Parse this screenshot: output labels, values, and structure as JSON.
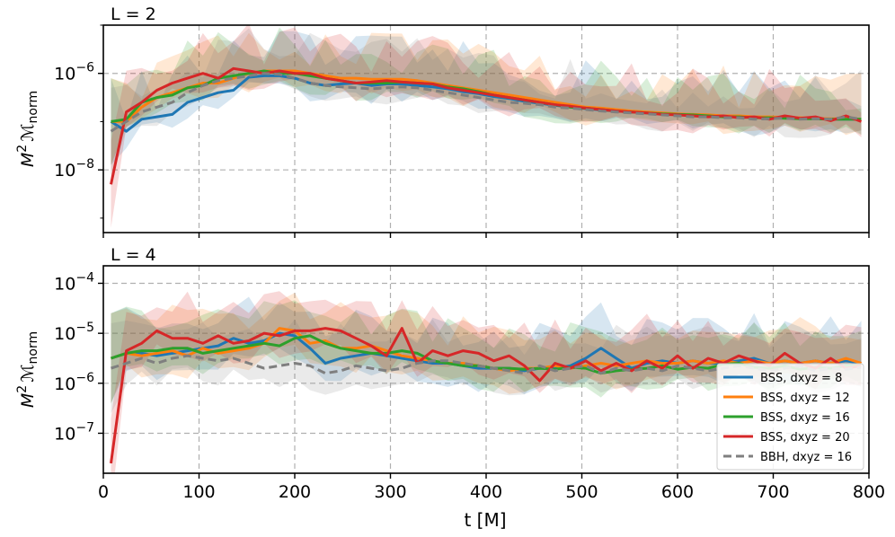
{
  "figure": {
    "xlabel": "t [M]"
  },
  "chart_data": [
    {
      "type": "line",
      "title": "L = 2",
      "ylabel_main": "M",
      "ylabel_sup": "2",
      "ylabel_script": "ℳ",
      "ylabel_sub": "norm",
      "yscale": "log",
      "xlim": [
        0,
        800
      ],
      "ylim_log10": [
        -9.3,
        -5
      ],
      "xticks": [
        0,
        100,
        200,
        300,
        400,
        500,
        600,
        700,
        800
      ],
      "yticks": [
        {
          "exp": -8,
          "base": "10",
          "sup": "−8"
        },
        {
          "exp": -6,
          "base": "10",
          "sup": "−6"
        }
      ],
      "grid": true,
      "x": [
        8,
        24,
        40,
        56,
        72,
        88,
        104,
        120,
        136,
        152,
        168,
        184,
        200,
        216,
        232,
        248,
        264,
        280,
        296,
        312,
        328,
        344,
        360,
        376,
        392,
        408,
        424,
        440,
        456,
        472,
        488,
        504,
        520,
        536,
        552,
        568,
        584,
        600,
        616,
        632,
        648,
        664,
        680,
        696,
        712,
        728,
        744,
        760,
        776,
        792
      ],
      "series": [
        {
          "name": "BSS, dxyz = 8",
          "color": "#1f77b4",
          "dashed": false,
          "log10": [
            -7.0,
            -7.2,
            -6.95,
            -6.9,
            -6.85,
            -6.6,
            -6.5,
            -6.4,
            -6.35,
            -6.08,
            -6.05,
            -6.05,
            -6.1,
            -6.2,
            -6.25,
            -6.22,
            -6.2,
            -6.25,
            -6.22,
            -6.22,
            -6.25,
            -6.28,
            -6.32,
            -6.38,
            -6.42,
            -6.48,
            -6.52,
            -6.58,
            -6.62,
            -6.66,
            -6.7,
            -6.73,
            -6.76,
            -6.78,
            -6.8,
            -6.82,
            -6.84,
            -6.85,
            -6.87,
            -6.88,
            -6.88,
            -6.9,
            -6.9,
            -6.92,
            -6.92,
            -6.93,
            -6.94,
            -6.95,
            -6.95,
            -6.95
          ]
        },
        {
          "name": "BSS, dxyz = 12",
          "color": "#ff7f0e",
          "dashed": false,
          "log10": [
            -7.0,
            -7.0,
            -6.7,
            -6.5,
            -6.4,
            -6.3,
            -6.2,
            -6.2,
            -6.1,
            -6.0,
            -5.95,
            -5.95,
            -5.95,
            -6.0,
            -6.05,
            -6.1,
            -6.1,
            -6.12,
            -6.12,
            -6.12,
            -6.15,
            -6.2,
            -6.25,
            -6.3,
            -6.35,
            -6.4,
            -6.45,
            -6.5,
            -6.55,
            -6.6,
            -6.65,
            -6.7,
            -6.72,
            -6.75,
            -6.78,
            -6.8,
            -6.82,
            -6.84,
            -6.85,
            -6.86,
            -6.88,
            -6.88,
            -6.9,
            -6.9,
            -6.91,
            -6.92,
            -6.93,
            -6.94,
            -6.94,
            -6.95
          ]
        },
        {
          "name": "BSS, dxyz = 16",
          "color": "#2ca02c",
          "dashed": false,
          "log10": [
            -7.0,
            -6.95,
            -6.6,
            -6.5,
            -6.45,
            -6.3,
            -6.25,
            -6.1,
            -6.05,
            -6.0,
            -5.95,
            -6.0,
            -6.0,
            -6.05,
            -6.1,
            -6.15,
            -6.2,
            -6.2,
            -6.2,
            -6.18,
            -6.2,
            -6.22,
            -6.28,
            -6.32,
            -6.38,
            -6.45,
            -6.5,
            -6.55,
            -6.6,
            -6.65,
            -6.7,
            -6.72,
            -6.75,
            -6.78,
            -6.8,
            -6.82,
            -6.84,
            -6.85,
            -6.86,
            -6.88,
            -6.9,
            -6.9,
            -6.92,
            -6.92,
            -6.93,
            -6.94,
            -6.94,
            -6.95,
            -6.95,
            -6.95
          ]
        },
        {
          "name": "BSS, dxyz = 20",
          "color": "#d62728",
          "dashed": false,
          "log10": [
            -8.3,
            -6.8,
            -6.6,
            -6.35,
            -6.2,
            -6.1,
            -6.0,
            -6.1,
            -5.9,
            -5.95,
            -6.0,
            -5.95,
            -6.0,
            -6.0,
            -6.1,
            -6.15,
            -6.2,
            -6.18,
            -6.15,
            -6.18,
            -6.2,
            -6.22,
            -6.3,
            -6.35,
            -6.4,
            -6.45,
            -6.5,
            -6.55,
            -6.6,
            -6.65,
            -6.68,
            -6.72,
            -6.75,
            -6.78,
            -6.8,
            -6.82,
            -6.85,
            -6.86,
            -6.88,
            -6.9,
            -6.88,
            -6.92,
            -6.9,
            -6.95,
            -6.88,
            -6.93,
            -6.9,
            -6.98,
            -6.88,
            -7.0
          ]
        },
        {
          "name": "BBH, dxyz = 16",
          "color": "#7f7f7f",
          "dashed": true,
          "log10": [
            -7.2,
            -7.0,
            -6.8,
            -6.7,
            -6.6,
            -6.4,
            -6.25,
            -6.15,
            -6.1,
            -6.05,
            -6.0,
            -6.02,
            -6.1,
            -6.2,
            -6.25,
            -6.28,
            -6.3,
            -6.32,
            -6.3,
            -6.28,
            -6.3,
            -6.35,
            -6.4,
            -6.45,
            -6.5,
            -6.55,
            -6.6,
            -6.62,
            -6.65,
            -6.7,
            -6.72,
            -6.75,
            -6.78,
            -6.8,
            -6.82,
            -6.84,
            -6.86,
            -6.88,
            -6.9,
            -6.9,
            -6.92,
            -6.92,
            -6.95,
            -6.94,
            -6.93,
            -6.95,
            -6.94,
            -6.95,
            -6.9,
            -6.95
          ]
        }
      ]
    },
    {
      "type": "line",
      "title": "L = 4",
      "ylabel_main": "M",
      "ylabel_sup": "2",
      "ylabel_script": "ℳ",
      "ylabel_sub": "norm",
      "yscale": "log",
      "xlim": [
        0,
        800
      ],
      "ylim_log10": [
        -7.8,
        -3.65
      ],
      "xticks": [
        0,
        100,
        200,
        300,
        400,
        500,
        600,
        700,
        800
      ],
      "yticks": [
        {
          "exp": -7,
          "base": "10",
          "sup": "−7"
        },
        {
          "exp": -6,
          "base": "10",
          "sup": "−6"
        },
        {
          "exp": -5,
          "base": "10",
          "sup": "−5"
        },
        {
          "exp": -4,
          "base": "10",
          "sup": "−4"
        }
      ],
      "grid": true,
      "legend_position": "bottom-right",
      "x": [
        8,
        24,
        40,
        56,
        72,
        88,
        104,
        120,
        136,
        152,
        168,
        184,
        200,
        216,
        232,
        248,
        264,
        280,
        296,
        312,
        328,
        344,
        360,
        376,
        392,
        408,
        424,
        440,
        456,
        472,
        488,
        504,
        520,
        536,
        552,
        568,
        584,
        600,
        616,
        632,
        648,
        664,
        680,
        696,
        712,
        728,
        744,
        760,
        776,
        792
      ],
      "series": [
        {
          "name": "BSS, dxyz = 8",
          "color": "#1f77b4",
          "dashed": false,
          "log10": [
            -5.5,
            -5.4,
            -5.4,
            -5.45,
            -5.4,
            -5.35,
            -5.3,
            -5.25,
            -5.1,
            -5.2,
            -5.15,
            -5.0,
            -5.05,
            -5.3,
            -5.6,
            -5.5,
            -5.45,
            -5.4,
            -5.45,
            -5.5,
            -5.55,
            -5.6,
            -5.6,
            -5.65,
            -5.7,
            -5.7,
            -5.7,
            -5.75,
            -5.7,
            -5.7,
            -5.65,
            -5.5,
            -5.3,
            -5.5,
            -5.7,
            -5.6,
            -5.55,
            -5.6,
            -5.55,
            -5.6,
            -5.6,
            -5.55,
            -5.5,
            -5.6,
            -5.55,
            -5.6,
            -5.55,
            -5.6,
            -5.55,
            -5.6
          ]
        },
        {
          "name": "BSS, dxyz = 12",
          "color": "#ff7f0e",
          "dashed": false,
          "log10": [
            -5.5,
            -5.4,
            -5.45,
            -5.4,
            -5.35,
            -5.45,
            -5.3,
            -5.4,
            -5.35,
            -5.3,
            -5.2,
            -4.9,
            -4.95,
            -5.2,
            -5.15,
            -5.3,
            -5.3,
            -5.25,
            -5.35,
            -5.45,
            -5.5,
            -5.55,
            -5.6,
            -5.6,
            -5.65,
            -5.7,
            -5.75,
            -5.7,
            -5.7,
            -5.65,
            -5.7,
            -5.65,
            -5.6,
            -5.65,
            -5.6,
            -5.55,
            -5.6,
            -5.6,
            -5.55,
            -5.6,
            -5.55,
            -5.6,
            -5.55,
            -5.6,
            -5.55,
            -5.6,
            -5.55,
            -5.6,
            -5.5,
            -5.6
          ]
        },
        {
          "name": "BSS, dxyz = 16",
          "color": "#2ca02c",
          "dashed": false,
          "log10": [
            -5.5,
            -5.4,
            -5.35,
            -5.35,
            -5.3,
            -5.3,
            -5.4,
            -5.35,
            -5.3,
            -5.25,
            -5.2,
            -5.25,
            -5.1,
            -5.05,
            -5.2,
            -5.3,
            -5.35,
            -5.4,
            -5.4,
            -5.35,
            -5.4,
            -5.55,
            -5.6,
            -5.65,
            -5.65,
            -5.7,
            -5.7,
            -5.72,
            -5.7,
            -5.72,
            -5.68,
            -5.7,
            -5.8,
            -5.75,
            -5.72,
            -5.7,
            -5.65,
            -5.72,
            -5.68,
            -5.7,
            -5.62,
            -5.6,
            -5.68,
            -5.7,
            -5.65,
            -5.72,
            -5.68,
            -5.7,
            -5.65,
            -5.65
          ]
        },
        {
          "name": "BSS, dxyz = 20",
          "color": "#d62728",
          "dashed": false,
          "log10": [
            -7.6,
            -5.35,
            -5.2,
            -4.95,
            -5.1,
            -5.1,
            -5.2,
            -5.05,
            -5.2,
            -5.15,
            -5.0,
            -5.05,
            -4.95,
            -4.95,
            -4.9,
            -4.95,
            -5.1,
            -5.25,
            -5.45,
            -4.9,
            -5.6,
            -5.35,
            -5.45,
            -5.35,
            -5.4,
            -5.55,
            -5.45,
            -5.65,
            -5.95,
            -5.6,
            -5.7,
            -5.55,
            -5.75,
            -5.6,
            -5.75,
            -5.55,
            -5.7,
            -5.45,
            -5.7,
            -5.5,
            -5.6,
            -5.45,
            -5.55,
            -5.65,
            -5.4,
            -5.6,
            -5.7,
            -5.5,
            -5.7,
            -5.65
          ]
        },
        {
          "name": "BBH, dxyz = 16",
          "color": "#7f7f7f",
          "dashed": true,
          "log10": [
            -5.7,
            -5.6,
            -5.5,
            -5.6,
            -5.5,
            -5.45,
            -5.5,
            -5.55,
            -5.5,
            -5.6,
            -5.7,
            -5.65,
            -5.6,
            -5.65,
            -5.8,
            -5.75,
            -5.65,
            -5.7,
            -5.75,
            -5.7,
            -5.6,
            -5.55,
            -5.55,
            -5.6,
            -5.65,
            -5.7,
            -5.75,
            -5.8,
            -5.65,
            -5.75,
            -5.7,
            -5.65,
            -5.8,
            -5.7,
            -5.75,
            -5.7,
            -5.75,
            -5.65,
            -5.7,
            -5.75,
            -5.7,
            -5.65,
            -5.7,
            -5.75,
            -5.7,
            -5.65,
            -5.75,
            -5.7,
            -5.72,
            -5.68
          ]
        }
      ]
    }
  ]
}
